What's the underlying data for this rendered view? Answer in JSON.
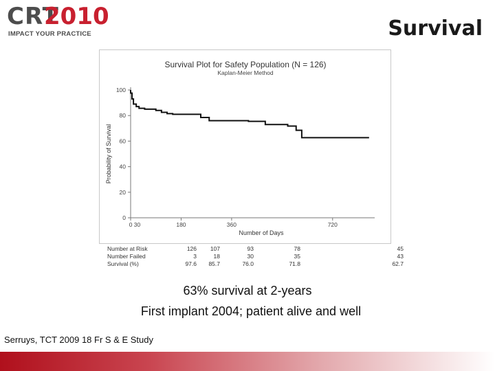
{
  "logo": {
    "crt": "CRT",
    "year": "2010",
    "tagline": "IMPACT YOUR PRACTICE"
  },
  "slide_title": "Survival",
  "chart_data": {
    "type": "line",
    "title": "Survival Plot for Safety Population (N = 126)",
    "subtitle": "Kaplan-Meier Method",
    "xlabel": "Number of Days",
    "ylabel": "Probability of Survival",
    "xlim": [
      0,
      870
    ],
    "ylim": [
      0,
      100
    ],
    "x_ticks": [
      "0 30",
      "180",
      "360",
      "720"
    ],
    "x_tick_values": [
      0,
      180,
      360,
      720
    ],
    "y_ticks": [
      "100",
      "80",
      "60",
      "40",
      "20",
      "0"
    ],
    "y_tick_values": [
      100,
      80,
      60,
      40,
      20,
      0
    ],
    "grid": false,
    "series": [
      {
        "x": [
          0,
          5,
          10,
          20,
          30,
          50,
          90,
          110,
          130,
          150,
          250,
          280,
          350,
          420,
          480,
          560,
          590,
          610,
          850
        ],
        "y": [
          97.6,
          93,
          89,
          87,
          85.7,
          85,
          84,
          82.5,
          81.5,
          81,
          78.5,
          76,
          76,
          75.5,
          73,
          71.8,
          68.5,
          62.7,
          62.7
        ]
      }
    ]
  },
  "risk_table": {
    "rows": [
      {
        "label": "Number at Risk",
        "values": [
          "126",
          "107",
          "93",
          "78",
          "45"
        ]
      },
      {
        "label": "Number  Failed",
        "values": [
          "3",
          "18",
          "30",
          "35",
          "43"
        ]
      },
      {
        "label": "Survival (%)",
        "values": [
          "97.6",
          "85.7",
          "76.0",
          "71.8",
          "62.7"
        ]
      }
    ]
  },
  "caption": {
    "line1": "63% survival at 2-years",
    "line2": "First implant 2004; patient alive and well"
  },
  "source": "Serruys, TCT 2009 18 Fr S & E Study",
  "colors": {
    "brand_red": "#c8202f",
    "curve": "#111111"
  }
}
